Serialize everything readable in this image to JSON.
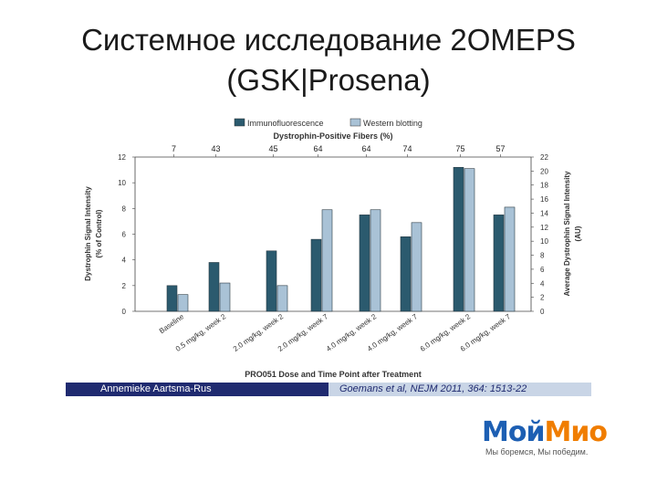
{
  "slide": {
    "title_line1": "Системное исследование 2OMEPS",
    "title_line2": "(GSK|Prosena)"
  },
  "chart_data": {
    "type": "bar",
    "legend": [
      "Immunofluorescence",
      "Western blotting"
    ],
    "legend_position": "top",
    "top_axis_title": "Dystrophin-Positive Fibers (%)",
    "top_values": [
      "7",
      "43",
      "45",
      "64",
      "64",
      "74",
      "75",
      "57"
    ],
    "xlabel": "PRO051 Dose and Time Point after Treatment",
    "ylabel_left": [
      "Dystrophin Signal Intensity",
      "(% of Control)"
    ],
    "ylabel_right": [
      "Average Dystrophin Signal Intensity",
      "(AU)"
    ],
    "ylim_left": [
      0,
      12
    ],
    "ylim_right": [
      0,
      22
    ],
    "yticks_left": [
      "0",
      "2",
      "4",
      "6",
      "8",
      "10",
      "12"
    ],
    "yticks_right": [
      "0",
      "2",
      "4",
      "6",
      "8",
      "10",
      "12",
      "14",
      "16",
      "18",
      "20",
      "22"
    ],
    "categories": [
      "Baseline",
      "0.5 mg/kg, week 2",
      "2.0 mg/kg, week 2",
      "2.0 mg/kg, week 7",
      "4.0 mg/kg, week 2",
      "4.0 mg/kg, week 7",
      "6.0 mg/kg, week 2",
      "6.0 mg/kg, week 7"
    ],
    "groups": [
      {
        "category_index": 0,
        "series": [
          {
            "name": "Immunofluorescence",
            "value": 2.0
          },
          {
            "name": "Western blotting",
            "value": 1.3
          }
        ]
      },
      {
        "category_index": 1,
        "series": [
          {
            "name": "Immunofluorescence",
            "value": 3.8
          },
          {
            "name": "Western blotting",
            "value": 2.2
          }
        ]
      },
      {
        "category_index": 2,
        "series": [
          {
            "name": "Immunofluorescence",
            "value": 4.7
          },
          {
            "name": "Western blotting",
            "value": 2.0
          }
        ]
      },
      {
        "category_index": 3,
        "series": [
          {
            "name": "Immunofluorescence",
            "value": 5.6
          },
          {
            "name": "Western blotting",
            "value": 7.9
          }
        ]
      },
      {
        "category_index": 4,
        "series": [
          {
            "name": "Immunofluorescence",
            "value": 7.5
          },
          {
            "name": "Western blotting",
            "value": 7.9
          }
        ]
      },
      {
        "category_index": 5,
        "series": [
          {
            "name": "Immunofluorescence",
            "value": 5.8
          },
          {
            "name": "Western blotting",
            "value": 6.9
          }
        ]
      },
      {
        "category_index": 6,
        "series": [
          {
            "name": "Immunofluorescence",
            "value": 11.2
          },
          {
            "name": "Western blotting",
            "value": 11.1
          }
        ]
      },
      {
        "category_index": 7,
        "series": [
          {
            "name": "Immunofluorescence",
            "value": 7.5
          },
          {
            "name": "Western blotting",
            "value": 8.1
          }
        ]
      }
    ],
    "colors": {
      "Immunofluorescence": "#2b5a6e",
      "Western blotting": "#a9c2d6"
    },
    "grid": false
  },
  "credits": {
    "author": "Annemieke Aartsma-Rus",
    "citation": "Goemans et al, NEJM 2011, 364: 1513-22"
  },
  "logo": {
    "part1": "Мой",
    "part2": "Мио",
    "tagline": "Мы боремся, Мы победим."
  }
}
